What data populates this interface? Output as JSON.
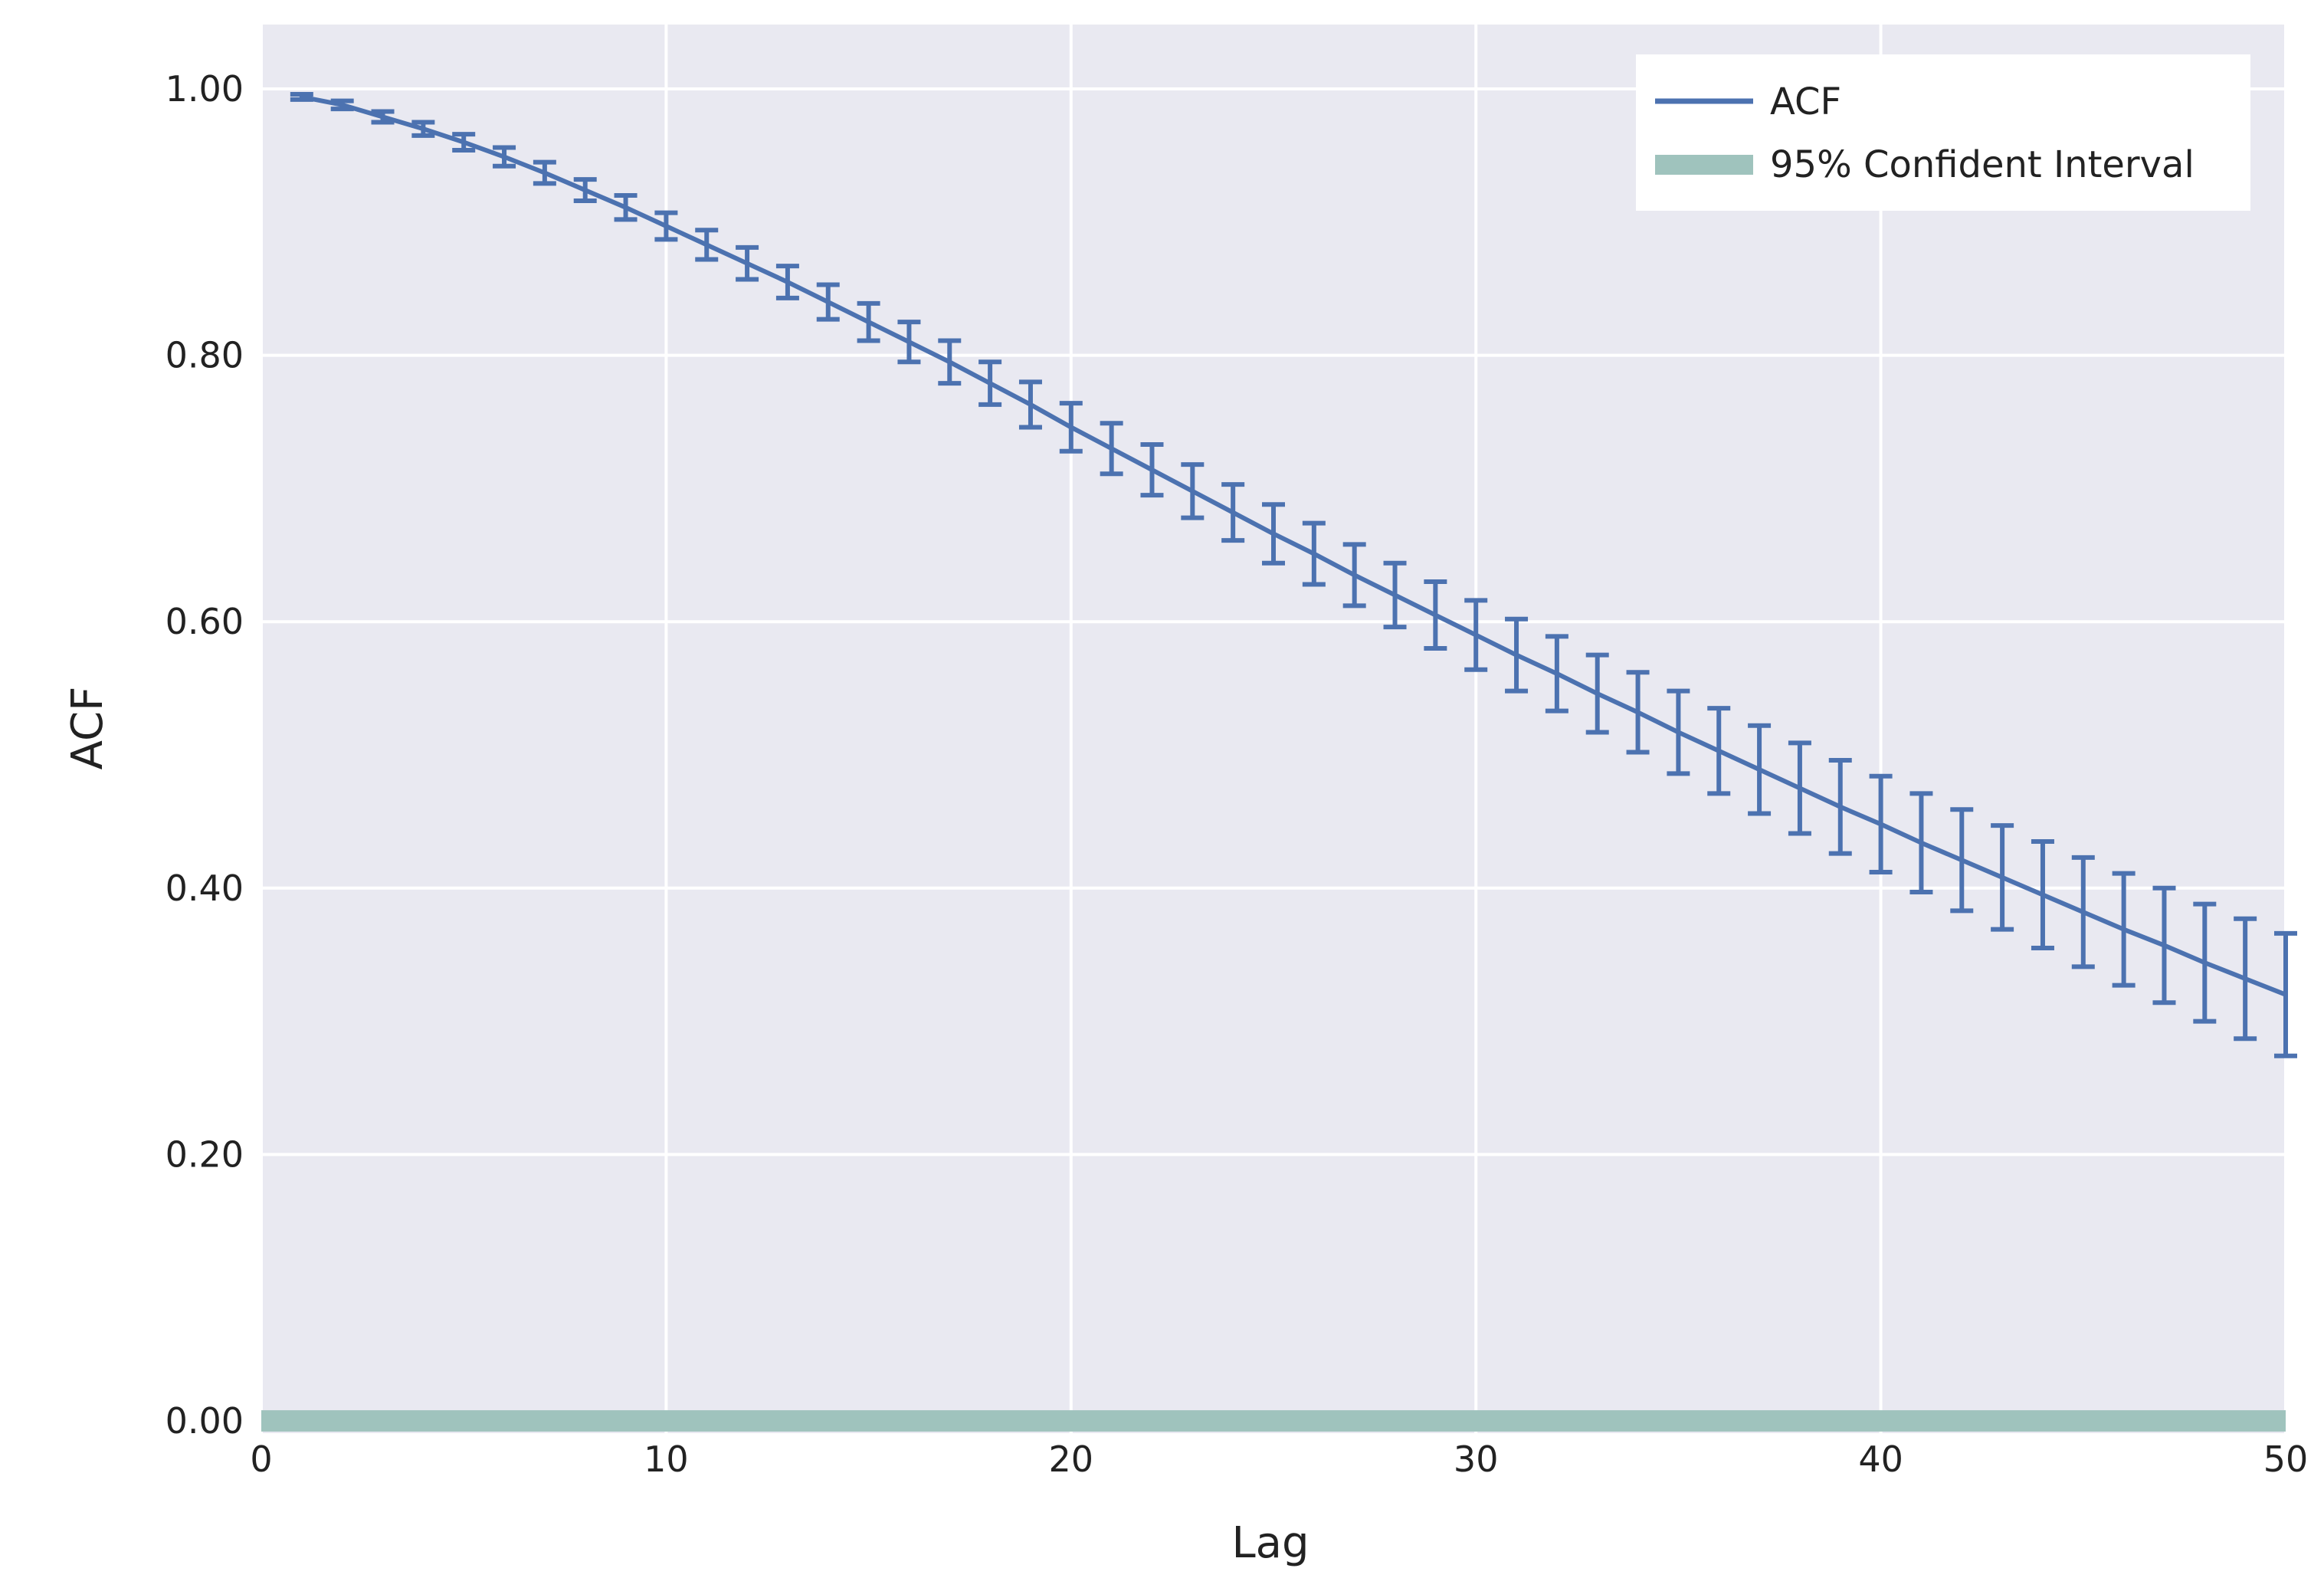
{
  "chart_data": {
    "type": "line",
    "title": "",
    "xlabel": "Lag",
    "ylabel": "ACF",
    "xlim": [
      0,
      50
    ],
    "ylim": [
      0,
      1
    ],
    "x_ticks": [
      0,
      10,
      20,
      30,
      40,
      50
    ],
    "x_tick_labels": [
      "0",
      "10",
      "20",
      "30",
      "40",
      "50"
    ],
    "y_ticks": [
      0,
      0.2,
      0.4,
      0.6,
      0.8,
      1.0
    ],
    "y_tick_labels": [
      "0.00",
      "0.20",
      "0.40",
      "0.60",
      "0.80",
      "1.00"
    ],
    "grid": true,
    "legend_position": "top-right",
    "series": [
      {
        "name": "ACF",
        "color": "#4c72b0",
        "x": [
          1,
          2,
          3,
          4,
          5,
          6,
          7,
          8,
          9,
          10,
          11,
          12,
          13,
          14,
          15,
          16,
          17,
          18,
          19,
          20,
          21,
          22,
          23,
          24,
          25,
          26,
          27,
          28,
          29,
          30,
          31,
          32,
          33,
          34,
          35,
          36,
          37,
          38,
          39,
          40,
          41,
          42,
          43,
          44,
          45,
          46,
          47,
          48,
          49,
          50
        ],
        "values": [
          0.994,
          0.988,
          0.979,
          0.97,
          0.96,
          0.949,
          0.937,
          0.924,
          0.911,
          0.897,
          0.883,
          0.869,
          0.855,
          0.84,
          0.825,
          0.81,
          0.795,
          0.779,
          0.763,
          0.746,
          0.73,
          0.714,
          0.698,
          0.682,
          0.666,
          0.651,
          0.635,
          0.62,
          0.605,
          0.59,
          0.575,
          0.561,
          0.546,
          0.532,
          0.517,
          0.503,
          0.489,
          0.475,
          0.461,
          0.448,
          0.434,
          0.421,
          0.408,
          0.395,
          0.382,
          0.369,
          0.357,
          0.344,
          0.332,
          0.32
        ],
        "error": [
          0.002,
          0.003,
          0.004,
          0.005,
          0.006,
          0.007,
          0.008,
          0.008,
          0.009,
          0.01,
          0.011,
          0.012,
          0.012,
          0.013,
          0.014,
          0.015,
          0.016,
          0.016,
          0.017,
          0.018,
          0.019,
          0.019,
          0.02,
          0.021,
          0.022,
          0.023,
          0.023,
          0.024,
          0.025,
          0.026,
          0.027,
          0.028,
          0.029,
          0.03,
          0.031,
          0.032,
          0.033,
          0.034,
          0.035,
          0.036,
          0.037,
          0.038,
          0.039,
          0.04,
          0.041,
          0.042,
          0.043,
          0.044,
          0.045,
          0.046
        ]
      },
      {
        "name": "95% Confident Interval",
        "color": "#9fc3bd",
        "lower": -0.008,
        "upper": 0.008
      }
    ]
  }
}
